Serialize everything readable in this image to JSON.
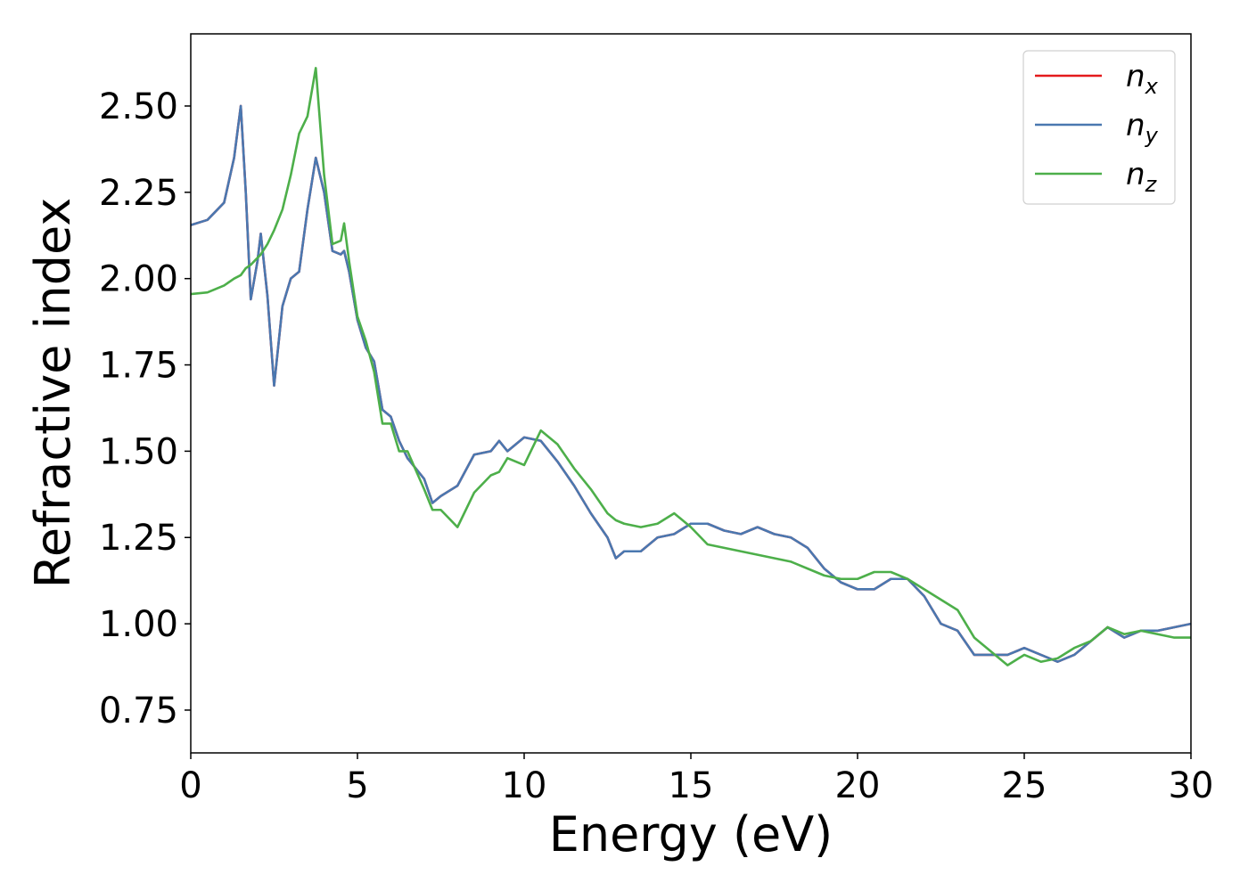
{
  "chart_data": {
    "type": "line",
    "xlabel": "Energy (eV)",
    "ylabel": "Refractive index",
    "x": [
      0,
      0.5,
      1,
      1.3,
      1.5,
      1.65,
      1.8,
      2,
      2.1,
      2.3,
      2.5,
      2.75,
      3,
      3.25,
      3.5,
      3.75,
      4,
      4.25,
      4.5,
      4.6,
      4.75,
      5,
      5.25,
      5.5,
      5.75,
      6,
      6.25,
      6.5,
      7,
      7.25,
      7.5,
      8,
      8.5,
      9,
      9.25,
      9.5,
      10,
      10.5,
      11,
      11.5,
      12,
      12.5,
      12.75,
      13,
      13.5,
      14,
      14.5,
      15,
      15.5,
      16,
      16.5,
      17,
      17.5,
      18,
      18.5,
      19,
      19.5,
      20,
      20.5,
      21,
      21.5,
      22,
      22.5,
      23,
      23.5,
      24,
      24.5,
      25,
      25.5,
      26,
      26.5,
      27,
      27.5,
      28,
      28.5,
      29,
      29.5,
      30
    ],
    "series": [
      {
        "name": "nx",
        "color": "#e41a1c",
        "values": [
          2.155,
          2.17,
          2.22,
          2.35,
          2.5,
          2.25,
          1.94,
          2.05,
          2.13,
          1.95,
          1.69,
          1.92,
          2.0,
          2.02,
          2.2,
          2.35,
          2.25,
          2.08,
          2.07,
          2.08,
          2.02,
          1.88,
          1.8,
          1.76,
          1.62,
          1.6,
          1.53,
          1.48,
          1.42,
          1.35,
          1.37,
          1.4,
          1.49,
          1.5,
          1.53,
          1.5,
          1.54,
          1.53,
          1.47,
          1.4,
          1.32,
          1.25,
          1.19,
          1.21,
          1.21,
          1.25,
          1.26,
          1.29,
          1.29,
          1.27,
          1.26,
          1.28,
          1.26,
          1.25,
          1.22,
          1.16,
          1.12,
          1.1,
          1.1,
          1.13,
          1.13,
          1.08,
          1.0,
          0.98,
          0.91,
          0.91,
          0.91,
          0.93,
          0.91,
          0.89,
          0.91,
          0.95,
          0.99,
          0.96,
          0.98,
          0.98,
          0.99,
          1.0
        ]
      },
      {
        "name": "ny",
        "color": "#4a78b0",
        "values": [
          2.155,
          2.17,
          2.22,
          2.35,
          2.5,
          2.25,
          1.94,
          2.05,
          2.13,
          1.95,
          1.69,
          1.92,
          2.0,
          2.02,
          2.2,
          2.35,
          2.25,
          2.08,
          2.07,
          2.08,
          2.02,
          1.88,
          1.8,
          1.76,
          1.62,
          1.6,
          1.53,
          1.48,
          1.42,
          1.35,
          1.37,
          1.4,
          1.49,
          1.5,
          1.53,
          1.5,
          1.54,
          1.53,
          1.47,
          1.4,
          1.32,
          1.25,
          1.19,
          1.21,
          1.21,
          1.25,
          1.26,
          1.29,
          1.29,
          1.27,
          1.26,
          1.28,
          1.26,
          1.25,
          1.22,
          1.16,
          1.12,
          1.1,
          1.1,
          1.13,
          1.13,
          1.08,
          1.0,
          0.98,
          0.91,
          0.91,
          0.91,
          0.93,
          0.91,
          0.89,
          0.91,
          0.95,
          0.99,
          0.96,
          0.98,
          0.98,
          0.99,
          1.0
        ]
      },
      {
        "name": "nz",
        "color": "#4daf4a",
        "values": [
          1.955,
          1.96,
          1.98,
          2.0,
          2.01,
          2.03,
          2.04,
          2.06,
          2.07,
          2.1,
          2.14,
          2.2,
          2.3,
          2.42,
          2.47,
          2.61,
          2.3,
          2.1,
          2.11,
          2.16,
          2.05,
          1.89,
          1.82,
          1.73,
          1.58,
          1.58,
          1.5,
          1.5,
          1.39,
          1.33,
          1.33,
          1.28,
          1.38,
          1.43,
          1.44,
          1.48,
          1.46,
          1.56,
          1.52,
          1.45,
          1.39,
          1.32,
          1.3,
          1.29,
          1.28,
          1.29,
          1.32,
          1.28,
          1.23,
          1.22,
          1.21,
          1.2,
          1.19,
          1.18,
          1.16,
          1.14,
          1.13,
          1.13,
          1.15,
          1.15,
          1.13,
          1.1,
          1.07,
          1.04,
          0.96,
          0.92,
          0.88,
          0.91,
          0.89,
          0.9,
          0.93,
          0.95,
          0.99,
          0.97,
          0.98,
          0.97,
          0.96,
          0.96
        ]
      }
    ],
    "xlim": [
      0,
      30
    ],
    "xticks": [
      0,
      5,
      10,
      15,
      20,
      25,
      30
    ],
    "ylim": [
      0.626,
      2.709
    ],
    "yticks": [
      {
        "value": 0.75,
        "label": "0.75"
      },
      {
        "value": 1.0,
        "label": "1.00"
      },
      {
        "value": 1.25,
        "label": "1.25"
      },
      {
        "value": 1.5,
        "label": "1.50"
      },
      {
        "value": 1.75,
        "label": "1.75"
      },
      {
        "value": 2.0,
        "label": "2.00"
      },
      {
        "value": 2.25,
        "label": "2.25"
      },
      {
        "value": 2.5,
        "label": "2.50"
      }
    ],
    "legend": "upper right",
    "grid": false
  }
}
